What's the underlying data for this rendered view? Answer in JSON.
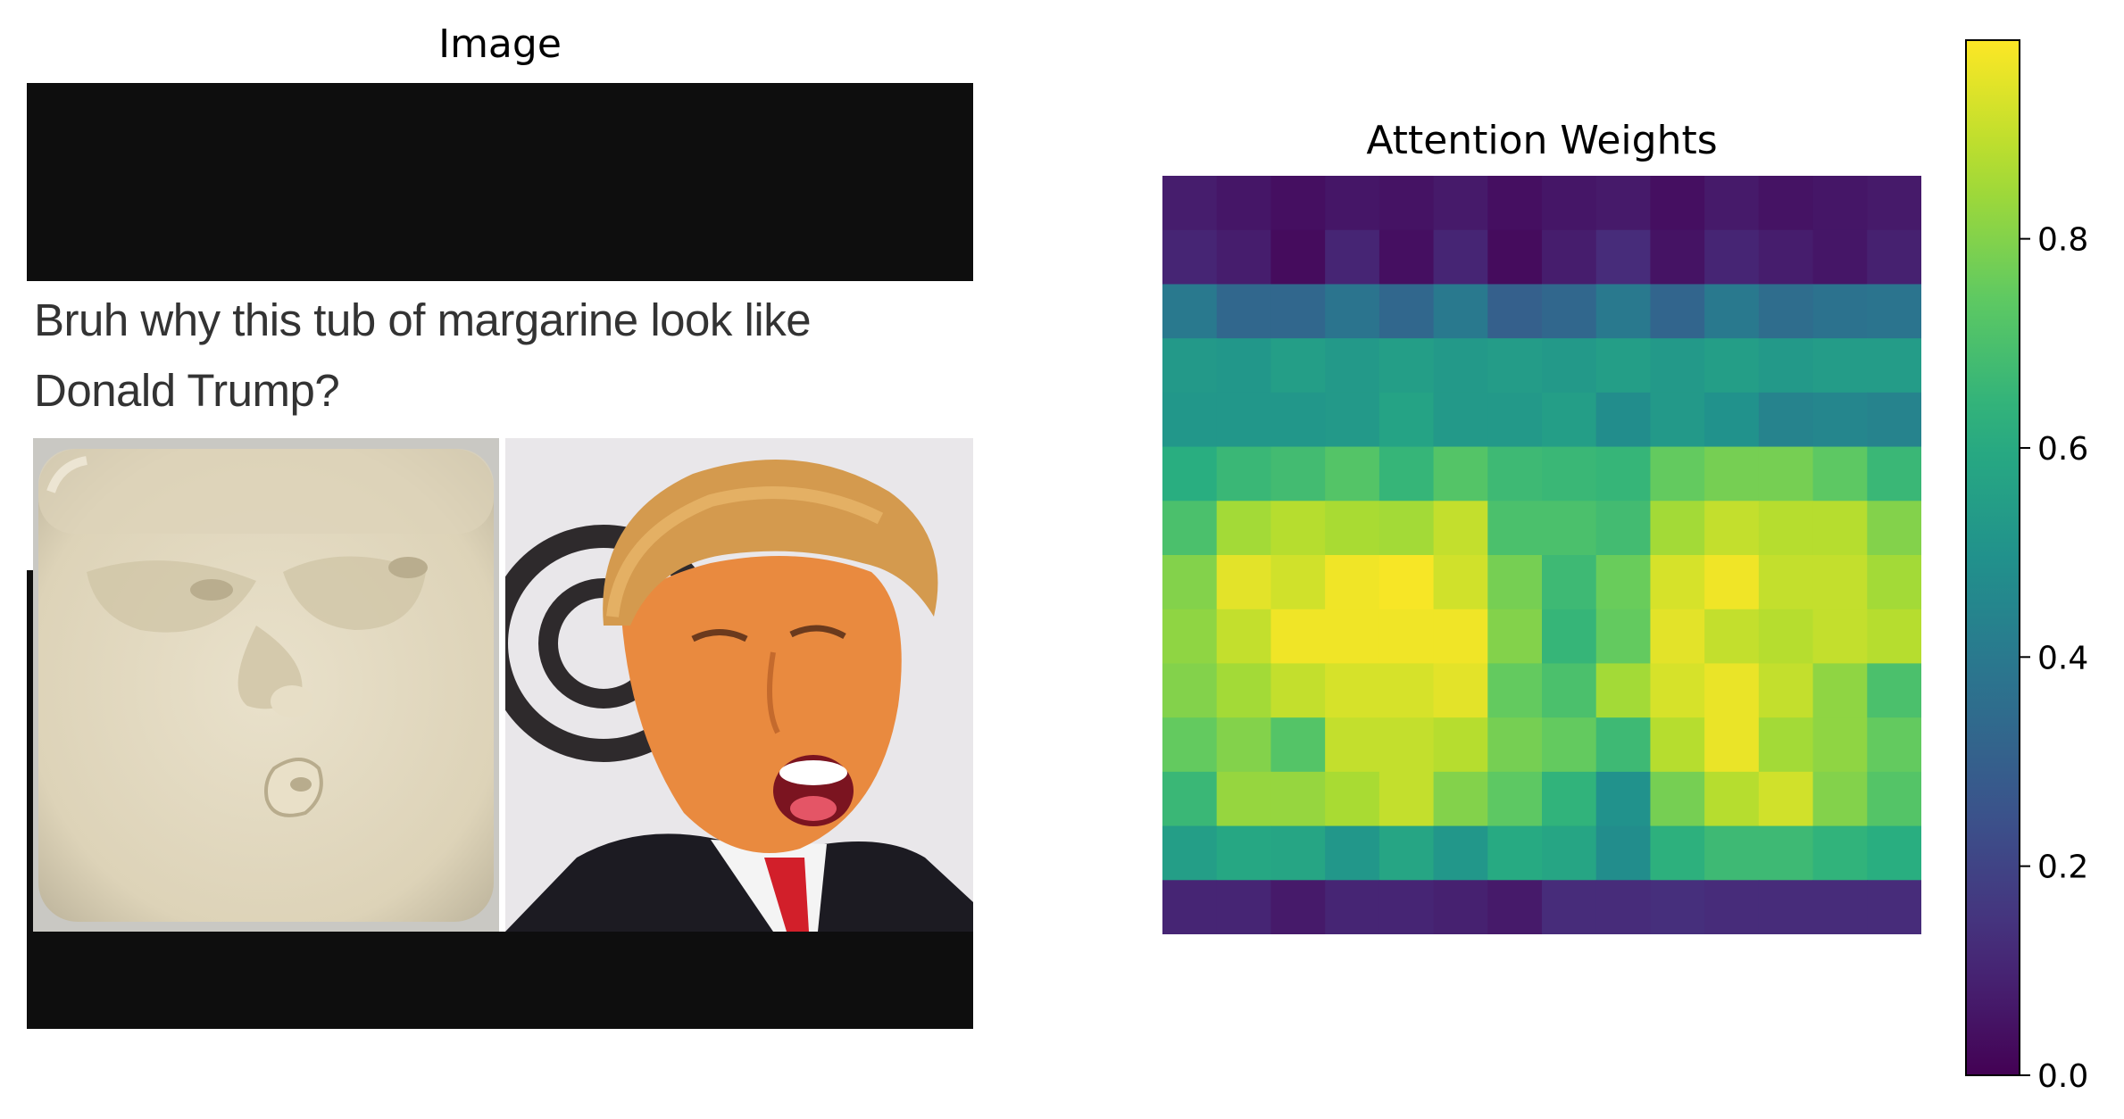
{
  "image_panel": {
    "title": "Image",
    "caption_line1": "Bruh why this tub of margarine look like",
    "caption_line2": "Donald Trump?",
    "colors": {
      "frame": "#0e0e0e",
      "caption_bg": "#ffffff",
      "caption_text": "#333333"
    }
  },
  "chart_data": {
    "type": "heatmap",
    "title": "Attention Weights",
    "colormap": "viridis",
    "vmin": 0.0,
    "vmax": 0.99,
    "axes_visible": false,
    "rows": 14,
    "cols": 14,
    "values": [
      [
        0.08,
        0.06,
        0.04,
        0.06,
        0.05,
        0.07,
        0.04,
        0.06,
        0.07,
        0.04,
        0.07,
        0.05,
        0.06,
        0.07
      ],
      [
        0.1,
        0.08,
        0.03,
        0.1,
        0.04,
        0.1,
        0.03,
        0.08,
        0.12,
        0.05,
        0.1,
        0.08,
        0.06,
        0.09
      ],
      [
        0.4,
        0.33,
        0.33,
        0.38,
        0.33,
        0.4,
        0.3,
        0.33,
        0.4,
        0.32,
        0.4,
        0.35,
        0.37,
        0.38
      ],
      [
        0.53,
        0.52,
        0.55,
        0.53,
        0.55,
        0.53,
        0.54,
        0.53,
        0.55,
        0.53,
        0.55,
        0.53,
        0.54,
        0.54
      ],
      [
        0.52,
        0.52,
        0.52,
        0.53,
        0.57,
        0.53,
        0.53,
        0.55,
        0.48,
        0.53,
        0.5,
        0.44,
        0.45,
        0.44
      ],
      [
        0.62,
        0.66,
        0.68,
        0.72,
        0.65,
        0.72,
        0.67,
        0.66,
        0.65,
        0.75,
        0.78,
        0.78,
        0.74,
        0.66
      ],
      [
        0.7,
        0.85,
        0.88,
        0.86,
        0.85,
        0.9,
        0.7,
        0.7,
        0.68,
        0.85,
        0.9,
        0.88,
        0.88,
        0.8
      ],
      [
        0.8,
        0.95,
        0.92,
        0.97,
        0.98,
        0.92,
        0.78,
        0.67,
        0.76,
        0.93,
        0.97,
        0.9,
        0.9,
        0.85
      ],
      [
        0.82,
        0.9,
        0.97,
        0.97,
        0.97,
        0.97,
        0.8,
        0.65,
        0.75,
        0.95,
        0.9,
        0.88,
        0.9,
        0.88
      ],
      [
        0.8,
        0.85,
        0.9,
        0.93,
        0.93,
        0.95,
        0.75,
        0.7,
        0.85,
        0.93,
        0.96,
        0.9,
        0.82,
        0.7
      ],
      [
        0.75,
        0.8,
        0.72,
        0.9,
        0.9,
        0.88,
        0.78,
        0.75,
        0.67,
        0.88,
        0.96,
        0.85,
        0.82,
        0.75
      ],
      [
        0.66,
        0.83,
        0.83,
        0.86,
        0.9,
        0.8,
        0.74,
        0.64,
        0.5,
        0.78,
        0.88,
        0.92,
        0.8,
        0.72
      ],
      [
        0.55,
        0.59,
        0.58,
        0.52,
        0.58,
        0.52,
        0.6,
        0.58,
        0.48,
        0.63,
        0.67,
        0.67,
        0.64,
        0.62
      ],
      [
        0.1,
        0.1,
        0.07,
        0.1,
        0.1,
        0.09,
        0.07,
        0.12,
        0.12,
        0.13,
        0.12,
        0.12,
        0.12,
        0.12
      ]
    ],
    "colorbar": {
      "ticks": [
        0.0,
        0.2,
        0.4,
        0.6,
        0.8
      ],
      "tick_labels": [
        "0.0",
        "0.2",
        "0.4",
        "0.6",
        "0.8"
      ]
    }
  }
}
